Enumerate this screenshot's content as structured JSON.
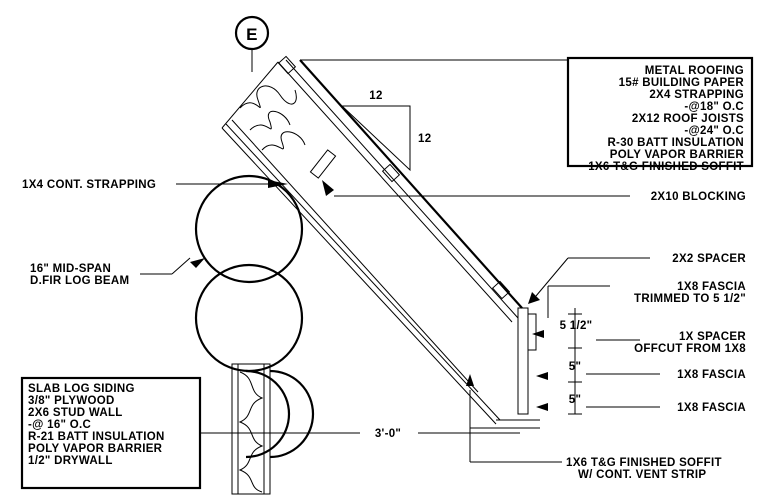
{
  "section_marker": {
    "letter": "E"
  },
  "slope": {
    "rise": "12",
    "run": "12"
  },
  "roof_assembly": [
    "METAL ROOFING",
    "15# BUILDING PAPER",
    "2X4 STRAPPING",
    "-@18\" O.C",
    "2X12 ROOF JOISTS",
    "-@24\" O.C",
    "R-30 BATT INSULATION",
    "POLY VAPOR BARRIER",
    "1X6 T&G FINISHED SOFFIT"
  ],
  "wall_assembly": [
    "SLAB LOG SIDING",
    "3/8\" PLYWOOD",
    "2X6 STUD WALL",
    "-@ 16\" O.C",
    "R-21 BATT INSULATION",
    "POLY VAPOR BARRIER",
    "1/2\" DRYWALL"
  ],
  "callouts": {
    "strapping": "1X4 CONT. STRAPPING",
    "blocking": "2X10 BLOCKING",
    "log_beam_1": "16\"  MID-SPAN",
    "log_beam_2": "D.FIR LOG BEAM",
    "spacer": "2X2 SPACER",
    "fascia_trim_1": "1X8 FASCIA",
    "fascia_trim_2": "TRIMMED TO 5 1/2\"",
    "ix_spacer_1": "1X SPACER",
    "ix_spacer_2": "OFFCUT FROM 1X8",
    "fascia_a": "1X8 FASCIA",
    "fascia_b": "1X8 FASCIA",
    "soffit_1": "1X6 T&G FINISHED SOFFIT",
    "soffit_2": "W/ CONT. VENT STRIP"
  },
  "dimensions": {
    "overhang": "3'-0\"",
    "d1": "5 1/2\"",
    "d2": "5\"",
    "d3": "5\""
  }
}
